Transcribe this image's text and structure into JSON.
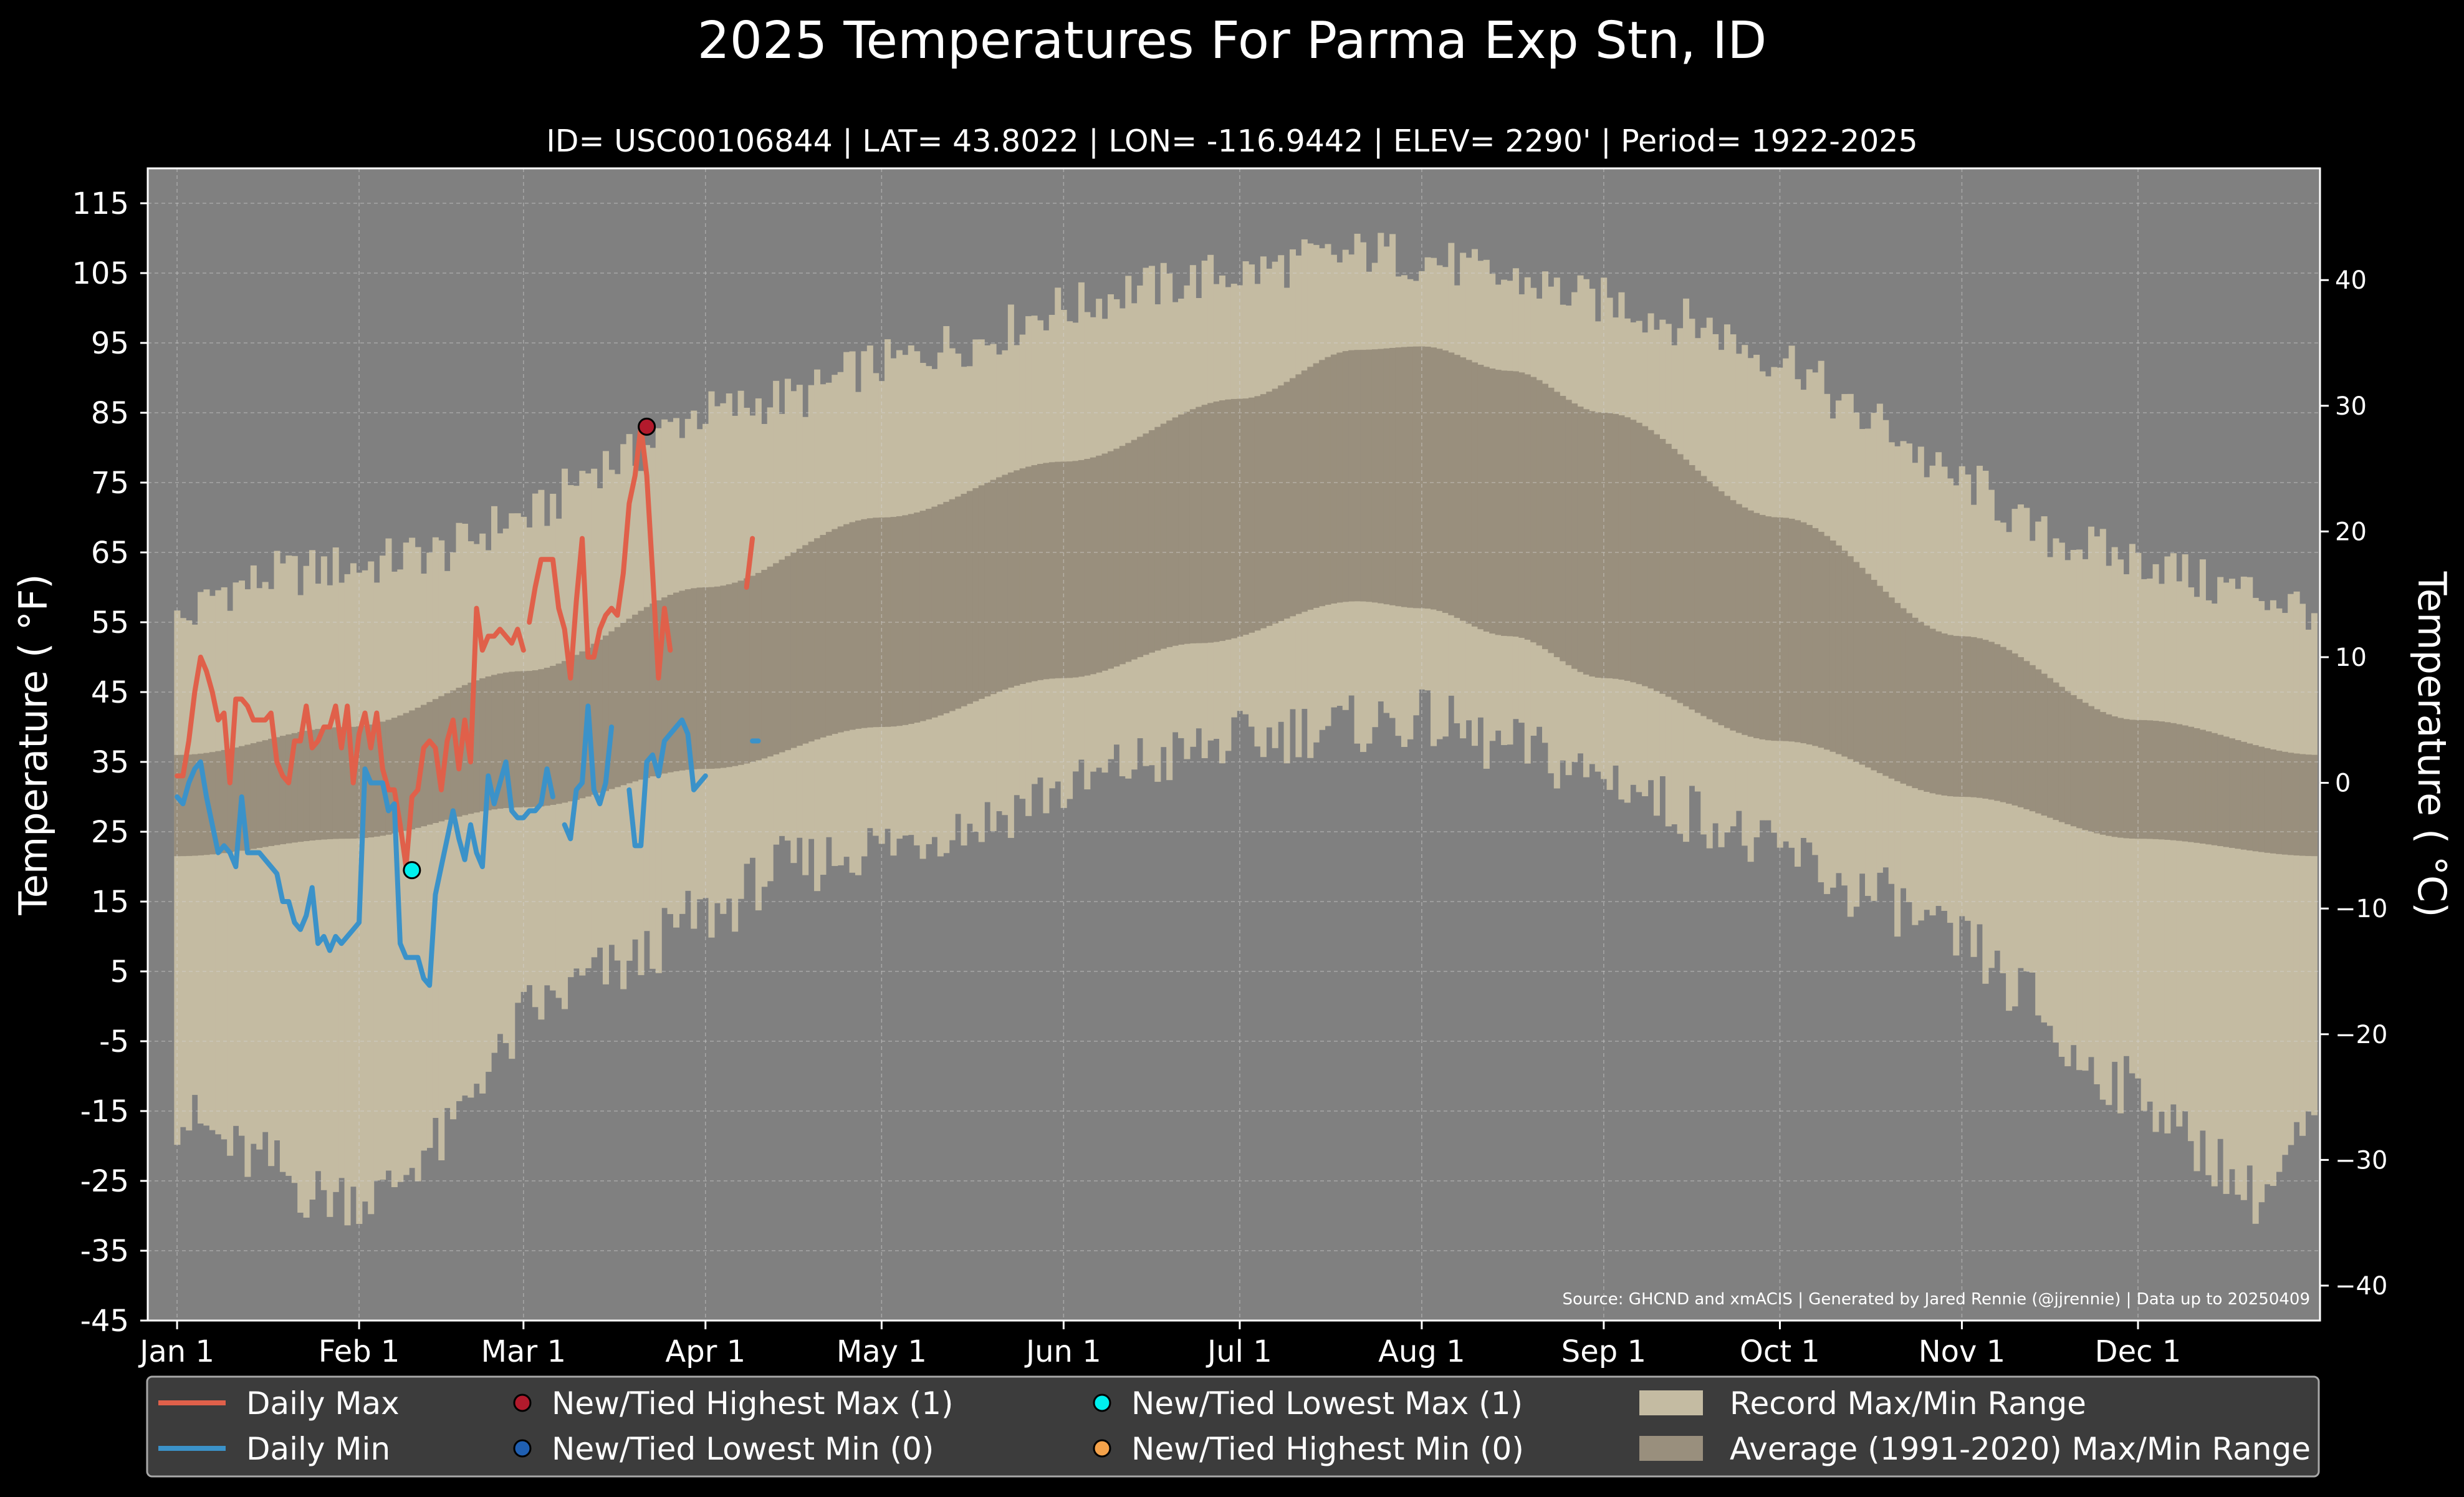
{
  "chart_data": {
    "type": "line",
    "title": "2025 Temperatures For Parma Exp Stn, ID",
    "subtitle": "ID= USC00106844 | LAT= 43.8022 | LON= -116.9442 | ELEV= 2290' | Period= 1922-2025",
    "ylabel": "Temperature ( °F)",
    "ylabel_right": "Temperature ( °C)",
    "ylim": [
      -45,
      120
    ],
    "ylim_c": [
      -42.78,
      48.89
    ],
    "yticks": [
      "-45",
      "-35",
      "-25",
      "-15",
      "-5",
      "5",
      "15",
      "25",
      "35",
      "45",
      "55",
      "65",
      "75",
      "85",
      "95",
      "105",
      "115"
    ],
    "yticks_right": [
      "−40",
      "−30",
      "−20",
      "−10",
      "0",
      "10",
      "20",
      "30",
      "40"
    ],
    "xlim": [
      -4,
      366
    ],
    "xticks": [
      {
        "day": 1,
        "label": "Jan 1"
      },
      {
        "day": 32,
        "label": "Feb 1"
      },
      {
        "day": 60,
        "label": "Mar 1"
      },
      {
        "day": 91,
        "label": "Apr 1"
      },
      {
        "day": 121,
        "label": "May 1"
      },
      {
        "day": 152,
        "label": "Jun 1"
      },
      {
        "day": 182,
        "label": "Jul 1"
      },
      {
        "day": 213,
        "label": "Aug 1"
      },
      {
        "day": 244,
        "label": "Sep 1"
      },
      {
        "day": 274,
        "label": "Oct 1"
      },
      {
        "day": 305,
        "label": "Nov 1"
      },
      {
        "day": 335,
        "label": "Dec 1"
      }
    ],
    "grid": true,
    "source_note": "Source: GHCND and xmACIS | Generated by Jared Rennie (@jjrennie) | Data up to 20250409",
    "record_max_anchors": [
      [
        1,
        55
      ],
      [
        10,
        60
      ],
      [
        20,
        62
      ],
      [
        31,
        63
      ],
      [
        45,
        65
      ],
      [
        60,
        70
      ],
      [
        75,
        78
      ],
      [
        91,
        85
      ],
      [
        105,
        87
      ],
      [
        121,
        92
      ],
      [
        135,
        95
      ],
      [
        152,
        100
      ],
      [
        166,
        103
      ],
      [
        182,
        105
      ],
      [
        196,
        107
      ],
      [
        205,
        108
      ],
      [
        213,
        107
      ],
      [
        228,
        104
      ],
      [
        244,
        101
      ],
      [
        258,
        98
      ],
      [
        274,
        93
      ],
      [
        289,
        84
      ],
      [
        305,
        75
      ],
      [
        320,
        67
      ],
      [
        335,
        64
      ],
      [
        350,
        60
      ],
      [
        366,
        57
      ]
    ],
    "record_min_anchors": [
      [
        1,
        -16
      ],
      [
        15,
        -22
      ],
      [
        25,
        -27
      ],
      [
        35,
        -27
      ],
      [
        45,
        -20
      ],
      [
        55,
        -8
      ],
      [
        62,
        0
      ],
      [
        75,
        5
      ],
      [
        91,
        13
      ],
      [
        105,
        20
      ],
      [
        121,
        23
      ],
      [
        135,
        26
      ],
      [
        152,
        31
      ],
      [
        166,
        35
      ],
      [
        182,
        38
      ],
      [
        196,
        40
      ],
      [
        213,
        41
      ],
      [
        228,
        37
      ],
      [
        244,
        33
      ],
      [
        258,
        28
      ],
      [
        274,
        22
      ],
      [
        289,
        16
      ],
      [
        305,
        9
      ],
      [
        315,
        2
      ],
      [
        325,
        -8
      ],
      [
        335,
        -12
      ],
      [
        345,
        -20
      ],
      [
        355,
        -27
      ],
      [
        366,
        -17
      ]
    ],
    "normal_max_anchors": [
      [
        1,
        36
      ],
      [
        30,
        40
      ],
      [
        60,
        48
      ],
      [
        91,
        60
      ],
      [
        121,
        70
      ],
      [
        152,
        78
      ],
      [
        182,
        87
      ],
      [
        202,
        94
      ],
      [
        213,
        94.5
      ],
      [
        228,
        91
      ],
      [
        244,
        85
      ],
      [
        274,
        70
      ],
      [
        305,
        53
      ],
      [
        335,
        41
      ],
      [
        366,
        36
      ]
    ],
    "normal_min_anchors": [
      [
        1,
        21.5
      ],
      [
        30,
        24
      ],
      [
        60,
        28.5
      ],
      [
        91,
        34
      ],
      [
        121,
        40
      ],
      [
        152,
        47
      ],
      [
        175,
        52
      ],
      [
        202,
        58
      ],
      [
        213,
        57
      ],
      [
        228,
        53
      ],
      [
        244,
        47
      ],
      [
        274,
        38
      ],
      [
        305,
        30
      ],
      [
        335,
        24
      ],
      [
        366,
        21.5
      ]
    ],
    "series": [
      {
        "name": "Daily Max",
        "color": "#e0604a",
        "segments": [
          {
            "start_day": 1,
            "values": [
              33,
              33,
              38,
              45,
              50,
              48,
              45,
              41,
              42,
              32,
              44,
              44,
              43,
              41,
              41,
              41,
              42,
              35,
              33,
              32,
              38,
              38,
              43,
              37,
              38,
              40,
              40,
              43,
              37,
              43,
              32,
              39,
              42,
              37,
              42,
              34,
              31,
              31,
              26,
              20,
              30,
              31,
              37,
              38,
              37,
              31,
              38,
              41,
              34,
              41,
              35,
              57,
              51,
              53,
              53,
              54,
              53,
              52,
              54,
              51
            ]
          },
          {
            "start_day": 61,
            "values": [
              55,
              60,
              64,
              64,
              64,
              57,
              54,
              47,
              58,
              67,
              50,
              50,
              54,
              56,
              57,
              56,
              62,
              72,
              76,
              83,
              76,
              62,
              47,
              57,
              51
            ]
          },
          {
            "start_day": 98,
            "values": [
              60,
              67
            ]
          }
        ]
      },
      {
        "name": "Daily Min",
        "color": "#3b92c9",
        "segments": [
          {
            "start_day": 1,
            "values": [
              30,
              29,
              32,
              34,
              35,
              30,
              26,
              22,
              23,
              22,
              20,
              30,
              22,
              22,
              22,
              21,
              20,
              19,
              15,
              15,
              12,
              11,
              13,
              17,
              9,
              10,
              8,
              10,
              9,
              10,
              11,
              12,
              34,
              32,
              32,
              32,
              28,
              29,
              9,
              7,
              7,
              7,
              4,
              3,
              16,
              20,
              24,
              28,
              24,
              21,
              26,
              22,
              20,
              33,
              29,
              32,
              35,
              28,
              27,
              27,
              28,
              28,
              29,
              34,
              30
            ]
          },
          {
            "start_day": 67,
            "values": [
              26,
              24,
              31,
              32,
              43,
              31,
              29,
              32,
              40
            ]
          },
          {
            "start_day": 78,
            "values": [
              31,
              23,
              23,
              35,
              36,
              33,
              38,
              39,
              40,
              41,
              39,
              31,
              32,
              33
            ]
          },
          {
            "start_day": 99,
            "values": [
              38,
              38
            ]
          }
        ]
      }
    ],
    "markers": [
      {
        "name": "New/Tied Highest Max (1)",
        "day": 81,
        "value": 83,
        "color": "#b21a2c"
      },
      {
        "name": "New/Tied Lowest Max (1)",
        "day": 41,
        "value": 19.5,
        "color": "#00f0ee"
      }
    ],
    "legend": {
      "placement": "bottom",
      "entries": [
        {
          "label": "Daily Max",
          "kind": "line",
          "color": "#e0604a"
        },
        {
          "label": "Daily Min",
          "kind": "line",
          "color": "#3b92c9"
        },
        {
          "label": "New/Tied Highest Max (1)",
          "kind": "dot",
          "color": "#b21a2c"
        },
        {
          "label": "New/Tied Lowest Min (0)",
          "kind": "dot",
          "color": "#1f5fb2"
        },
        {
          "label": "New/Tied Lowest Max (1)",
          "kind": "dot",
          "color": "#00f0ee"
        },
        {
          "label": "New/Tied Highest Min (0)",
          "kind": "dot",
          "color": "#f4a24a"
        },
        {
          "label": "Record Max/Min Range",
          "kind": "patch",
          "color": "#c4bba2"
        },
        {
          "label": "Average (1991-2020) Max/Min Range",
          "kind": "patch",
          "color": "#998f7d"
        }
      ]
    },
    "colors": {
      "background": "#000000",
      "plot_background": "#808080",
      "record_range": "#c4bba2",
      "normal_range": "#998f7d",
      "legend_background": "#3c3c3c"
    }
  }
}
